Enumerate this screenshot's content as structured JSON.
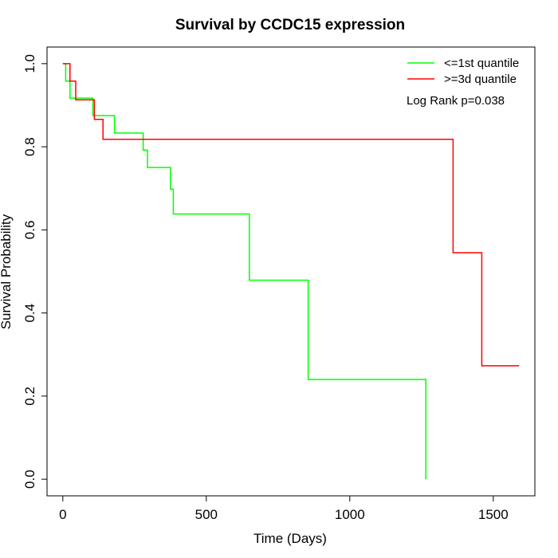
{
  "chart_data": {
    "type": "line",
    "title": "Survival by CCDC15 expression",
    "xlabel": "Time (Days)",
    "ylabel": "Survival Probability",
    "xlim": [
      -55,
      1645
    ],
    "ylim": [
      -0.04,
      1.04
    ],
    "x_ticks": [
      0,
      500,
      1000,
      1500
    ],
    "x_tick_labels": [
      "0",
      "500",
      "1000",
      "1500"
    ],
    "y_ticks": [
      0.0,
      0.2,
      0.4,
      0.6,
      0.8,
      1.0
    ],
    "y_tick_labels": [
      "0.0",
      "0.2",
      "0.4",
      "0.6",
      "0.8",
      "1.0"
    ],
    "grid": false,
    "legend_position": "top-right",
    "annotation": "Log Rank p=0.038",
    "series": [
      {
        "name": "<=1st quantile",
        "color": "#00ff00",
        "step": true,
        "x": [
          0,
          10,
          25,
          105,
          180,
          280,
          295,
          375,
          385,
          650,
          855,
          1265,
          1265
        ],
        "y": [
          1.0,
          0.958,
          0.917,
          0.875,
          0.833,
          0.792,
          0.75,
          0.698,
          0.638,
          0.479,
          0.24,
          0.24,
          0.0
        ]
      },
      {
        "name": ">=3d quantile",
        "color": "#ff0000",
        "step": true,
        "x": [
          0,
          25,
          45,
          110,
          140,
          1360,
          1460,
          1590
        ],
        "y": [
          1.0,
          0.958,
          0.913,
          0.866,
          0.818,
          0.545,
          0.273,
          0.273
        ]
      }
    ]
  }
}
